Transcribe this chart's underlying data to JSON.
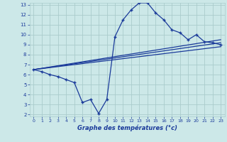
{
  "xlabel": "Graphe des températures (°c)",
  "background_color": "#cce8e8",
  "line_color": "#1a3a9a",
  "grid_color": "#aacccc",
  "xlim": [
    -0.5,
    23.5
  ],
  "ylim": [
    1.8,
    13.2
  ],
  "xticks": [
    0,
    1,
    2,
    3,
    4,
    5,
    6,
    7,
    8,
    9,
    10,
    11,
    12,
    13,
    14,
    15,
    16,
    17,
    18,
    19,
    20,
    21,
    22,
    23
  ],
  "yticks": [
    2,
    3,
    4,
    5,
    6,
    7,
    8,
    9,
    10,
    11,
    12,
    13
  ],
  "series": {
    "curve1_x": [
      0,
      1,
      2,
      3,
      4,
      5,
      6,
      7,
      8,
      9,
      10,
      11,
      12,
      13,
      14,
      15,
      16,
      17,
      18,
      19,
      20,
      21,
      22,
      23
    ],
    "curve1_y": [
      6.5,
      6.3,
      6.0,
      5.8,
      5.5,
      5.2,
      3.2,
      3.5,
      2.1,
      3.5,
      9.8,
      11.5,
      12.5,
      13.2,
      13.2,
      12.2,
      11.5,
      10.5,
      10.2,
      9.5,
      10.0,
      9.3,
      9.2,
      9.0
    ],
    "line1_x": [
      0,
      23
    ],
    "line1_y": [
      6.5,
      9.5
    ],
    "line2_x": [
      0,
      23
    ],
    "line2_y": [
      6.5,
      9.2
    ],
    "line3_x": [
      0,
      23
    ],
    "line3_y": [
      6.5,
      8.8
    ]
  }
}
